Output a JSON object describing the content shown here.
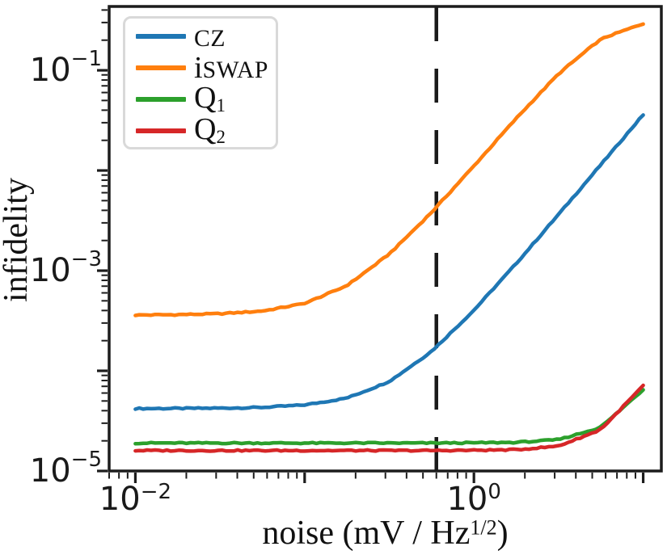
{
  "figure": {
    "background": "#ffffff",
    "ylabel": "infidelity",
    "xlabel": {
      "pre": "noise (mV / Hz",
      "sup": "1/2",
      "post": ")"
    }
  },
  "legend": {
    "position": "upper left",
    "border_color": "#d9d9d9",
    "items": [
      {
        "label": "CZ",
        "pre": "",
        "sc": "cz",
        "sub": "",
        "color": "#1f77b4"
      },
      {
        "label": "iSWAP",
        "pre": "i",
        "sc": "swap",
        "sub": "",
        "color": "#ff7f0e"
      },
      {
        "label": "Q1",
        "pre": "Q",
        "sc": "",
        "sub": "1",
        "color": "#2ca02c"
      },
      {
        "label": "Q2",
        "pre": "Q",
        "sc": "",
        "sub": "2",
        "color": "#d62728"
      }
    ]
  },
  "axis": {
    "x_decades": [
      -3,
      -2,
      -1,
      0,
      1
    ],
    "y_decades": [
      -5,
      -4,
      -3,
      -2,
      -1
    ],
    "x_tick_labels": [
      {
        "log": -2,
        "base": "10",
        "exp": "−2"
      },
      {
        "log": 0,
        "base": "10",
        "exp": "0"
      }
    ],
    "y_tick_labels": [
      {
        "log": -5,
        "base": "10",
        "exp": "−5"
      },
      {
        "log": -3,
        "base": "10",
        "exp": "−3"
      },
      {
        "log": -1,
        "base": "10",
        "exp": "−1"
      }
    ]
  },
  "chart_data": {
    "type": "line",
    "title": "",
    "xlabel": "noise (mV / Hz^1/2)",
    "ylabel": "infidelity",
    "x_scale": "log",
    "y_scale": "log",
    "xlim": [
      0.007,
      12.8
    ],
    "ylim": [
      1e-05,
      0.434
    ],
    "grid": false,
    "legend_position": "upper left",
    "vline": {
      "x": 0.6,
      "style": "dashed",
      "color": "#1a1a1a"
    },
    "x": [
      0.01,
      0.0178,
      0.0316,
      0.0562,
      0.1,
      0.178,
      0.316,
      0.562,
      1.0,
      1.78,
      3.16,
      5.62,
      10.0
    ],
    "series": [
      {
        "name": "CZ",
        "color": "#1f77b4",
        "y": [
          4.2e-05,
          4.21e-05,
          4.24e-05,
          4.31e-05,
          4.56e-05,
          5.34e-05,
          7.8e-05,
          0.000156,
          0.000402,
          0.00118,
          0.00364,
          0.0114,
          0.036
        ]
      },
      {
        "name": "iSWAP",
        "color": "#ff7f0e",
        "y": [
          0.00036,
          0.000364,
          0.000371,
          0.000395,
          0.00047,
          0.000708,
          0.00146,
          0.00381,
          0.0111,
          0.0332,
          0.0923,
          0.206,
          0.292
        ]
      },
      {
        "name": "Q1",
        "color": "#2ca02c",
        "y": [
          1.9e-05,
          1.9e-05,
          1.9e-05,
          1.9e-05,
          1.9e-05,
          1.9e-05,
          1.9e-05,
          1.9e-05,
          1.91e-05,
          1.93e-05,
          2.05e-05,
          2.72e-05,
          6.5e-05
        ]
      },
      {
        "name": "Q2",
        "color": "#d62728",
        "y": [
          1.6e-05,
          1.6e-05,
          1.6e-05,
          1.6e-05,
          1.6e-05,
          1.6e-05,
          1.6e-05,
          1.6e-05,
          1.61e-05,
          1.63e-05,
          1.77e-05,
          2.58e-05,
          7.1e-05
        ]
      }
    ],
    "jitter_log10": 0.013
  }
}
